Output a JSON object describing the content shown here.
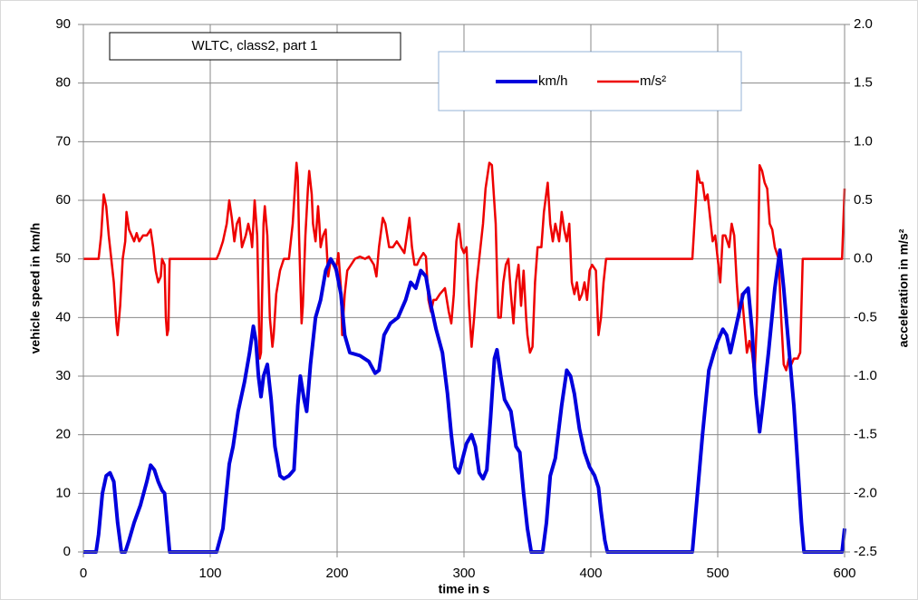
{
  "chart_data": {
    "type": "line",
    "annotations": [
      "WLTC, class2, part 1"
    ],
    "xlabel": "time in s",
    "ylabel": "vehicle speed in km/h",
    "y2label": "acceleration in m/s²",
    "xlim": [
      0,
      600
    ],
    "xticks": [
      0,
      100,
      200,
      300,
      400,
      500,
      600
    ],
    "ylim": [
      0,
      90
    ],
    "yticks": [
      0,
      10,
      20,
      30,
      40,
      50,
      60,
      70,
      80,
      90
    ],
    "y2lim": [
      -2.5,
      2
    ],
    "y2ticks": [
      -2.5,
      {
        "value": -2,
        "label": "-2.0"
      },
      -1.5,
      {
        "value": -1,
        "label": "-1.0"
      },
      -0.5,
      {
        "value": 0,
        "label": "0.0"
      },
      0.5,
      {
        "value": 1,
        "label": "1.0"
      },
      1.5,
      {
        "value": 2,
        "label": "2.0"
      }
    ],
    "grid": true,
    "legend": "top",
    "series": [
      {
        "name": "km/h",
        "color": "#0000dd",
        "x": [
          0,
          10,
          12,
          15,
          18,
          21,
          24,
          27,
          30,
          33,
          36,
          40,
          45,
          50,
          53,
          56,
          59,
          62,
          64,
          66,
          68,
          105,
          110,
          115,
          118,
          122,
          127,
          131,
          134,
          136,
          138,
          140,
          142,
          145,
          148,
          151,
          155,
          158,
          162,
          166,
          169,
          171,
          174,
          176,
          179,
          183,
          187,
          191,
          195,
          199,
          203,
          206,
          210,
          218,
          225,
          230,
          233,
          237,
          242,
          248,
          254,
          258,
          262,
          266,
          270,
          274,
          278,
          283,
          287,
          290,
          293,
          296,
          299,
          302,
          306,
          309,
          312,
          315,
          318,
          321,
          324,
          326,
          329,
          332,
          337,
          341,
          344,
          347,
          350,
          353,
          362,
          365,
          368,
          372,
          377,
          381,
          384,
          387,
          391,
          395,
          399,
          403,
          406,
          408,
          411,
          413,
          480,
          484,
          488,
          493,
          497,
          500,
          504,
          507,
          510,
          513,
          516,
          520,
          524,
          527,
          530,
          533,
          536,
          540,
          545,
          549,
          552,
          556,
          560,
          563,
          566,
          568,
          598,
          600
        ],
        "values": [
          0,
          0,
          3,
          10,
          13,
          13.5,
          12,
          5,
          0,
          0,
          2,
          5,
          8,
          12,
          14.8,
          14,
          12,
          10.5,
          10,
          5,
          0,
          0,
          4,
          15,
          18,
          24,
          29,
          34,
          38.5,
          36,
          30,
          26.5,
          30,
          32,
          26,
          18,
          13,
          12.5,
          13,
          14,
          25,
          30,
          26,
          24,
          32,
          40,
          43,
          48,
          50,
          48.5,
          44,
          37,
          34,
          33.5,
          32.5,
          30.5,
          31,
          37,
          39,
          40,
          43,
          46,
          45,
          48,
          47,
          42,
          38,
          34,
          27,
          20,
          14.5,
          13.5,
          16,
          18.5,
          20,
          18,
          13.5,
          12.5,
          14,
          23,
          33,
          34.5,
          30,
          26,
          24,
          18,
          17,
          10,
          4,
          0,
          0,
          5,
          13,
          16,
          25,
          31,
          30,
          27,
          21,
          17,
          14.5,
          13,
          11,
          7,
          2,
          0,
          0,
          10,
          20,
          31,
          34,
          36,
          38,
          37,
          34,
          37,
          40,
          44,
          45,
          38,
          27,
          20.5,
          26,
          34,
          45,
          51.5,
          45,
          35,
          25,
          15,
          5,
          0,
          0,
          4
        ]
      },
      {
        "name": "m/s²",
        "color": "#ee0000",
        "axis": "y2",
        "x": [
          0,
          12,
          14,
          16,
          18,
          20,
          22,
          24,
          26,
          27,
          29,
          31,
          33,
          34,
          36,
          38,
          40,
          42,
          44,
          47,
          50,
          53,
          55,
          57,
          59,
          61,
          62,
          64,
          65,
          66,
          67,
          68,
          105,
          107,
          110,
          113,
          115,
          117,
          119,
          121,
          123,
          125,
          128,
          130,
          132,
          133,
          135,
          136,
          137,
          138,
          139,
          140,
          142,
          143,
          145,
          147,
          149,
          150,
          152,
          155,
          158,
          162,
          165,
          167,
          168,
          169,
          170,
          172,
          173,
          175,
          177,
          178,
          180,
          181,
          183,
          185,
          186,
          187,
          189,
          191,
          193,
          195,
          197,
          199,
          201,
          203,
          204,
          206,
          208,
          211,
          214,
          218,
          222,
          225,
          229,
          231,
          233,
          236,
          238,
          241,
          244,
          247,
          250,
          253,
          255,
          257,
          259,
          261,
          263,
          265,
          268,
          270,
          272,
          274,
          276,
          278,
          281,
          285,
          288,
          290,
          292,
          294,
          296,
          298,
          300,
          302,
          304,
          306,
          308,
          310,
          313,
          315,
          317,
          320,
          322,
          325,
          327,
          329,
          331,
          333,
          335,
          337,
          339,
          341,
          343,
          345,
          347,
          349,
          350,
          352,
          354,
          356,
          358,
          361,
          363,
          366,
          368,
          370,
          372,
          375,
          377,
          379,
          381,
          383,
          385,
          387,
          389,
          391,
          393,
          395,
          397,
          399,
          401,
          404,
          406,
          408,
          410,
          412,
          480,
          483,
          484,
          486,
          488,
          490,
          492,
          494,
          496,
          498,
          500,
          502,
          504,
          506,
          509,
          511,
          513,
          515,
          517,
          519,
          521,
          523,
          525,
          527,
          529,
          531,
          533,
          535,
          537,
          539,
          541,
          543,
          545,
          548,
          550,
          552,
          554,
          556,
          558,
          560,
          563,
          565,
          567,
          598,
          600
        ],
        "values": [
          0,
          0,
          0.2,
          0.55,
          0.45,
          0.2,
          0,
          -0.2,
          -0.55,
          -0.65,
          -0.4,
          0,
          0.15,
          0.4,
          0.25,
          0.2,
          0.15,
          0.22,
          0.15,
          0.2,
          0.2,
          0.25,
          0.1,
          -0.1,
          -0.2,
          -0.15,
          0,
          -0.05,
          -0.5,
          -0.65,
          -0.6,
          0,
          0,
          0.05,
          0.15,
          0.3,
          0.5,
          0.35,
          0.15,
          0.3,
          0.35,
          0.1,
          0.2,
          0.3,
          0.2,
          0.1,
          0.5,
          0.35,
          0.2,
          -0.3,
          -0.85,
          -0.8,
          0.3,
          0.45,
          0.2,
          -0.5,
          -0.75,
          -0.65,
          -0.3,
          -0.1,
          0,
          0,
          0.3,
          0.65,
          0.82,
          0.7,
          0.2,
          -0.55,
          -0.4,
          0.2,
          0.6,
          0.75,
          0.55,
          0.3,
          0.15,
          0.45,
          0.3,
          0.1,
          0.2,
          0.25,
          -0.15,
          0,
          -0.05,
          -0.1,
          0.05,
          -0.25,
          -0.65,
          -0.3,
          -0.1,
          -0.05,
          0,
          0.02,
          0,
          0.02,
          -0.05,
          -0.15,
          0.1,
          0.35,
          0.3,
          0.1,
          0.1,
          0.15,
          0.1,
          0.05,
          0.2,
          0.35,
          0.1,
          -0.05,
          -0.05,
          0,
          0.05,
          0.02,
          -0.35,
          -0.45,
          -0.35,
          -0.35,
          -0.3,
          -0.25,
          -0.45,
          -0.55,
          -0.3,
          0.15,
          0.3,
          0.1,
          0.05,
          0.1,
          -0.4,
          -0.75,
          -0.5,
          -0.2,
          0.1,
          0.3,
          0.6,
          0.82,
          0.8,
          0.3,
          -0.5,
          -0.5,
          -0.2,
          -0.05,
          0,
          -0.3,
          -0.55,
          -0.2,
          -0.05,
          -0.4,
          -0.1,
          -0.5,
          -0.65,
          -0.8,
          -0.75,
          -0.2,
          0.1,
          0.1,
          0.4,
          0.65,
          0.3,
          0.15,
          0.3,
          0.15,
          0.4,
          0.25,
          0.15,
          0.3,
          -0.2,
          -0.3,
          -0.2,
          -0.35,
          -0.3,
          -0.2,
          -0.35,
          -0.1,
          -0.05,
          -0.1,
          -0.65,
          -0.5,
          -0.2,
          0,
          0,
          0.55,
          0.75,
          0.65,
          0.65,
          0.5,
          0.55,
          0.35,
          0.15,
          0.2,
          0,
          -0.2,
          0.2,
          0.2,
          0.1,
          0.3,
          0.2,
          -0.2,
          -0.5,
          -0.3,
          -0.55,
          -0.8,
          -0.7,
          -0.8,
          -1,
          -0.5,
          0.8,
          0.75,
          0.65,
          0.6,
          0.3,
          0.25,
          0.1,
          0,
          -0.5,
          -0.9,
          -0.95,
          -0.85,
          -0.9,
          -0.85,
          -0.85,
          -0.8,
          0,
          0,
          0.6
        ]
      }
    ]
  }
}
